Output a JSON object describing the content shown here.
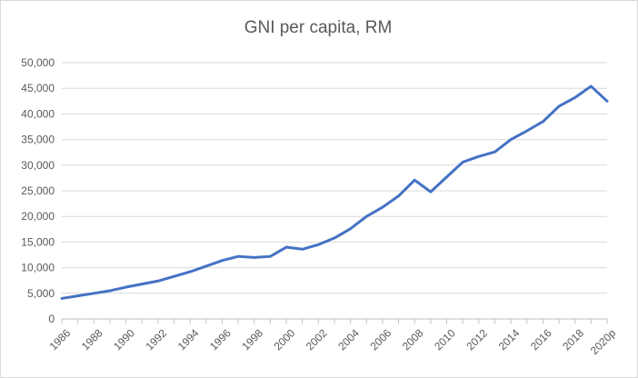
{
  "chart_data": {
    "type": "line",
    "title": "GNI per capita, RM",
    "xlabel": "",
    "ylabel": "",
    "ylim": [
      0,
      50000
    ],
    "yticks": [
      "0",
      "5,000",
      "10,000",
      "15,000",
      "20,000",
      "25,000",
      "30,000",
      "35,000",
      "40,000",
      "45,000",
      "50,000"
    ],
    "ytick_values": [
      0,
      5000,
      10000,
      15000,
      20000,
      25000,
      30000,
      35000,
      40000,
      45000,
      50000
    ],
    "grid": true,
    "legend": "none",
    "line_color": "#4472c4",
    "x": [
      "1986",
      "1987",
      "1988",
      "1989",
      "1990",
      "1991",
      "1992",
      "1993",
      "1994",
      "1995",
      "1996",
      "1997",
      "1998",
      "1999",
      "2000",
      "2001",
      "2002",
      "2003",
      "2004",
      "2005",
      "2006",
      "2007",
      "2008",
      "2009",
      "2010",
      "2011",
      "2012",
      "2013",
      "2014",
      "2015",
      "2016",
      "2017",
      "2018",
      "2019",
      "2020p"
    ],
    "xtick_labels": [
      "1986",
      "1988",
      "1990",
      "1992",
      "1994",
      "1996",
      "1998",
      "2000",
      "2002",
      "2004",
      "2006",
      "2008",
      "2010",
      "2012",
      "2014",
      "2016",
      "2018",
      "2020p"
    ],
    "series": [
      {
        "values": [
          4000,
          4500,
          5000,
          5500,
          6200,
          6800,
          7400,
          8300,
          9200,
          10300,
          11400,
          12200,
          12000,
          12200,
          14000,
          13600,
          14500,
          15800,
          17600,
          20000,
          21800,
          24000,
          27100,
          24800,
          27700,
          30600,
          31700,
          32600,
          35000,
          36700,
          38500,
          41500,
          43200,
          45400,
          42500
        ]
      }
    ]
  }
}
